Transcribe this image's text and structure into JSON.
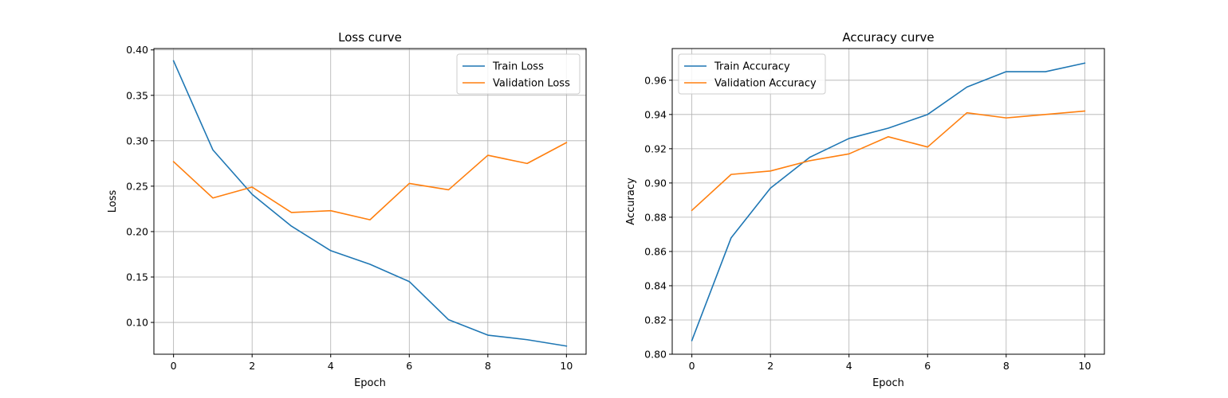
{
  "chart_data": [
    {
      "type": "line",
      "title": "Loss curve",
      "xlabel": "Epoch",
      "ylabel": "Loss",
      "x": [
        0,
        1,
        2,
        3,
        4,
        5,
        6,
        7,
        8,
        9,
        10
      ],
      "xlim": [
        -0.5,
        10.5
      ],
      "ylim": [
        0.065,
        0.4015
      ],
      "xticks": [
        0,
        2,
        4,
        6,
        8,
        10
      ],
      "yticks": [
        0.1,
        0.15,
        0.2,
        0.25,
        0.3,
        0.35,
        0.4
      ],
      "ytick_labels": [
        "0.10",
        "0.15",
        "0.20",
        "0.25",
        "0.30",
        "0.35",
        "0.40"
      ],
      "grid": true,
      "legend": "upper right",
      "series": [
        {
          "name": "Train Loss",
          "color": "#1f77b4",
          "values": [
            0.388,
            0.29,
            0.241,
            0.206,
            0.179,
            0.164,
            0.145,
            0.103,
            0.086,
            0.081,
            0.074
          ]
        },
        {
          "name": "Validation Loss",
          "color": "#ff7f0e",
          "values": [
            0.277,
            0.237,
            0.249,
            0.221,
            0.223,
            0.213,
            0.253,
            0.246,
            0.284,
            0.275,
            0.298
          ]
        }
      ]
    },
    {
      "type": "line",
      "title": "Accuracy curve",
      "xlabel": "Epoch",
      "ylabel": "Accuracy",
      "x": [
        0,
        1,
        2,
        3,
        4,
        5,
        6,
        7,
        8,
        9,
        10
      ],
      "xlim": [
        -0.5,
        10.5
      ],
      "ylim": [
        0.8,
        0.9785
      ],
      "xticks": [
        0,
        2,
        4,
        6,
        8,
        10
      ],
      "yticks": [
        0.8,
        0.82,
        0.84,
        0.86,
        0.88,
        0.9,
        0.92,
        0.94,
        0.96
      ],
      "ytick_labels": [
        "0.80",
        "0.82",
        "0.84",
        "0.86",
        "0.88",
        "0.90",
        "0.92",
        "0.94",
        "0.96"
      ],
      "grid": true,
      "legend": "upper left",
      "series": [
        {
          "name": "Train Accuracy",
          "color": "#1f77b4",
          "values": [
            0.808,
            0.868,
            0.897,
            0.915,
            0.926,
            0.932,
            0.94,
            0.956,
            0.965,
            0.965,
            0.97
          ]
        },
        {
          "name": "Validation Accuracy",
          "color": "#ff7f0e",
          "values": [
            0.884,
            0.905,
            0.907,
            0.913,
            0.917,
            0.927,
            0.921,
            0.941,
            0.938,
            0.94,
            0.942
          ]
        }
      ]
    }
  ]
}
